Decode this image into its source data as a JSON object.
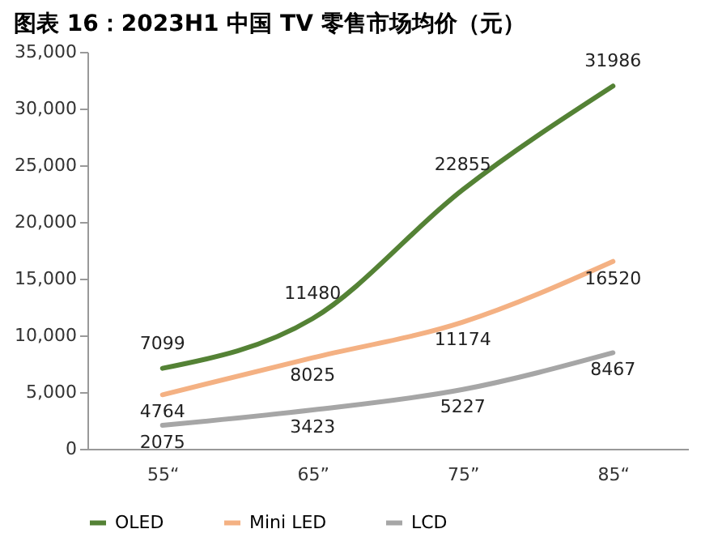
{
  "chart_data": {
    "type": "line",
    "title": "图表 16：2023H1 中国 TV 零售市场均价（元）",
    "categories": [
      "55“",
      "65”",
      "75”",
      "85“"
    ],
    "series": [
      {
        "name": "OLED",
        "color": "#548235",
        "values": [
          7099,
          11480,
          22855,
          31986
        ]
      },
      {
        "name": "Mini LED",
        "color": "#f4b183",
        "values": [
          4764,
          8025,
          11174,
          16520
        ]
      },
      {
        "name": "LCD",
        "color": "#a6a6a6",
        "values": [
          2075,
          3423,
          5227,
          8467
        ]
      }
    ],
    "ylim": [
      0,
      35000
    ],
    "yticks": [
      0,
      {
        "value": 5000,
        "label": "5,000"
      },
      {
        "value": 10000,
        "label": "10,000"
      },
      {
        "value": 15000,
        "label": "15,000"
      },
      {
        "value": 20000,
        "label": "20,000"
      },
      {
        "value": 25000,
        "label": "25,000"
      },
      {
        "value": 30000,
        "label": "30,000"
      },
      {
        "value": 35000,
        "label": "35,000"
      }
    ],
    "data_labels": true,
    "grid": false,
    "legend": "bottom",
    "marker": "none",
    "line_style": "solid"
  }
}
